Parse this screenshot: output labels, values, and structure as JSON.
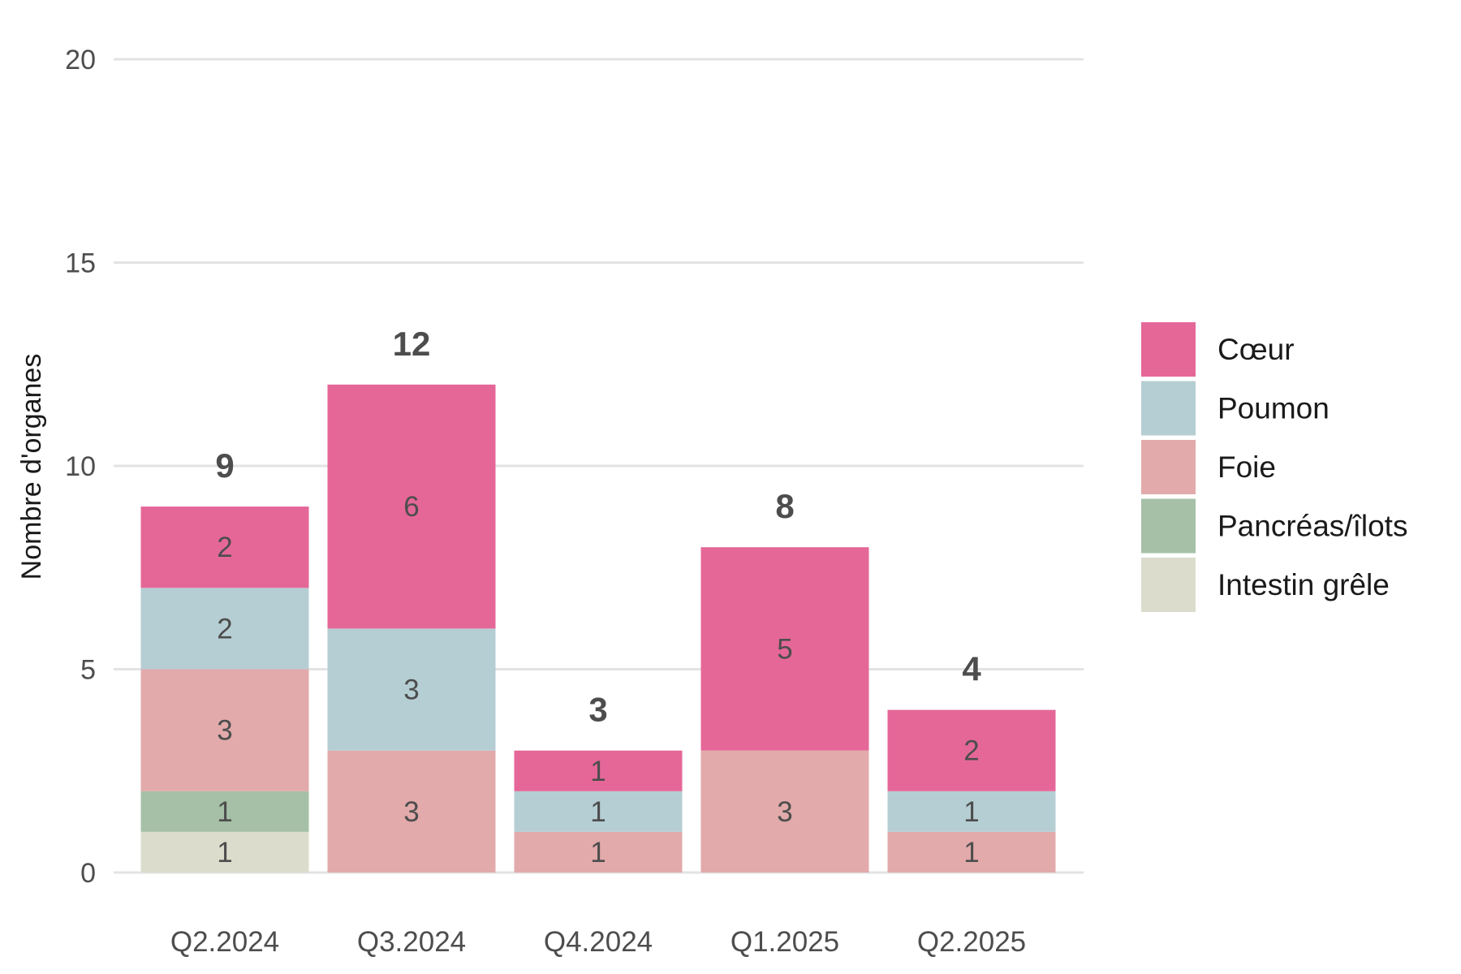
{
  "chart_data": {
    "type": "bar",
    "stacked": true,
    "title": "",
    "xlabel": "",
    "ylabel": "Nombre d'organes",
    "ylim": [
      0,
      20
    ],
    "yticks": [
      0,
      5,
      10,
      15,
      20
    ],
    "grid": "horizontal",
    "legend_position": "right",
    "categories": [
      "Q2.2024",
      "Q3.2024",
      "Q4.2024",
      "Q1.2025",
      "Q2.2025"
    ],
    "totals": [
      9,
      12,
      3,
      8,
      4
    ],
    "series": [
      {
        "name": "Intestin grêle",
        "color": "#dcdccd",
        "values": [
          1,
          0,
          0,
          0,
          0
        ]
      },
      {
        "name": "Pancréas/îlots",
        "color": "#a6c0a7",
        "values": [
          1,
          0,
          0,
          0,
          0
        ]
      },
      {
        "name": "Foie",
        "color": "#e2aaab",
        "values": [
          3,
          3,
          1,
          3,
          1
        ]
      },
      {
        "name": "Poumon",
        "color": "#b5ced3",
        "values": [
          2,
          3,
          1,
          0,
          1
        ]
      },
      {
        "name": "Cœur",
        "color": "#e56798",
        "values": [
          2,
          6,
          1,
          5,
          2
        ]
      }
    ],
    "legend_order": [
      "Cœur",
      "Poumon",
      "Foie",
      "Pancréas/îlots",
      "Intestin grêle"
    ]
  }
}
